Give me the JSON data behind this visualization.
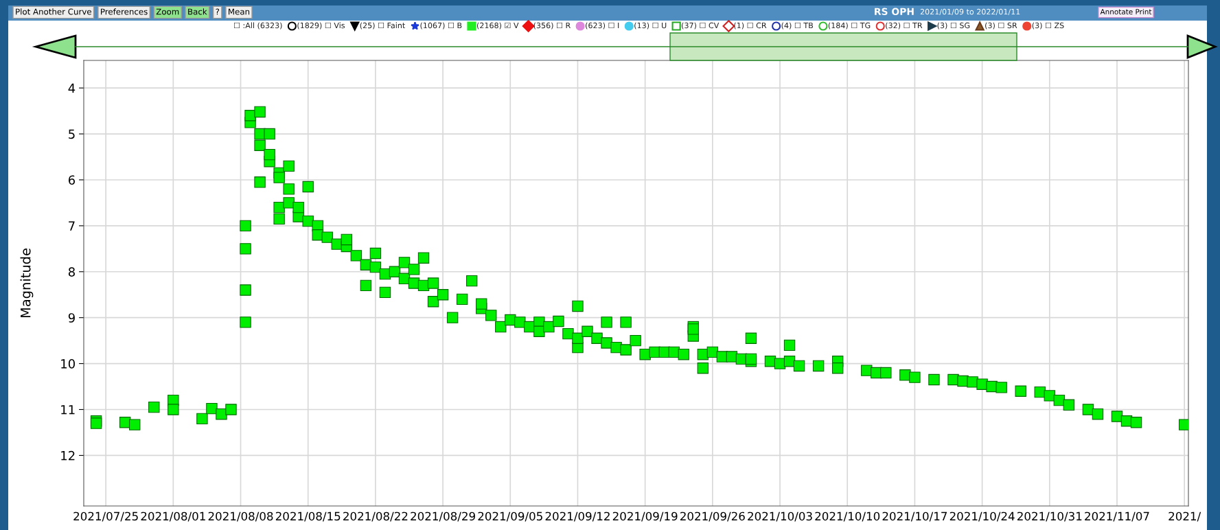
{
  "chart_data": {
    "type": "scatter",
    "title": "RS OPH",
    "subtitle": "2021/01/09 to 2022/01/11",
    "ylabel": "Magnitude",
    "annotations": [
      "Plot Another Curve",
      "Preferences",
      "Zoom",
      "Back",
      "?",
      "Mean",
      "Annotate Print",
      "☐ :All (6323)",
      "(1829) ☐ Vis",
      "(25) ☐ Faint",
      "(1067) ☐ B",
      "(2168) ☑ V",
      "(356) ☐ R",
      "(623) ☐ I",
      "(13) ☐ U",
      "(37) ☐ CV",
      "(1) ☐ CR",
      "(4) ☐ TB",
      "(184) ☐ TG",
      "(32) ☐ TR",
      "(3) ☐ SG",
      "(3) ☐ SR",
      "(3) ☐ ZS"
    ],
    "x": [
      "2021-07-24",
      "2021-07-24",
      "2021-07-27",
      "2021-07-28",
      "2021-07-30",
      "2021-08-01",
      "2021-08-01",
      "2021-08-04",
      "2021-08-05",
      "2021-08-06",
      "2021-08-07",
      "2021-08-08T12:00",
      "2021-08-08T12:00",
      "2021-08-08T12:00",
      "2021-08-08T12:00",
      "2021-08-09",
      "2021-08-09",
      "2021-08-10",
      "2021-08-10",
      "2021-08-10",
      "2021-08-11",
      "2021-08-11",
      "2021-08-11",
      "2021-08-10",
      "2021-08-12",
      "2021-08-12",
      "2021-08-13",
      "2021-08-12",
      "2021-08-12",
      "2021-08-13",
      "2021-08-13",
      "2021-08-14",
      "2021-08-14",
      "2021-08-15",
      "2021-08-15",
      "2021-08-16",
      "2021-08-16",
      "2021-08-17",
      "2021-08-18",
      "2021-08-19",
      "2021-08-19",
      "2021-08-20",
      "2021-08-21",
      "2021-08-21",
      "2021-08-22",
      "2021-08-22",
      "2021-08-23",
      "2021-08-23",
      "2021-08-24",
      "2021-08-25",
      "2021-08-25",
      "2021-08-26",
      "2021-08-26",
      "2021-08-27",
      "2021-08-27",
      "2021-08-28",
      "2021-08-28",
      "2021-08-29",
      "2021-08-30",
      "2021-08-31",
      "2021-09-01",
      "2021-09-02",
      "2021-09-02",
      "2021-09-03",
      "2021-09-04",
      "2021-09-05",
      "2021-09-06",
      "2021-09-07",
      "2021-09-08",
      "2021-09-08",
      "2021-09-09",
      "2021-09-10",
      "2021-09-11",
      "2021-09-12",
      "2021-09-12",
      "2021-09-12",
      "2021-09-13",
      "2021-09-14",
      "2021-09-15",
      "2021-09-15",
      "2021-09-16",
      "2021-09-17",
      "2021-09-17",
      "2021-09-18",
      "2021-09-19",
      "2021-09-20",
      "2021-09-21",
      "2021-09-22",
      "2021-09-23",
      "2021-09-24",
      "2021-09-24",
      "2021-09-24",
      "2021-09-25",
      "2021-09-25",
      "2021-09-26",
      "2021-09-27",
      "2021-09-28",
      "2021-09-29",
      "2021-09-30",
      "2021-09-30",
      "2021-09-30",
      "2021-10-02",
      "2021-10-03",
      "2021-10-04",
      "2021-10-04",
      "2021-10-05",
      "2021-10-07",
      "2021-10-09",
      "2021-10-09",
      "2021-10-12",
      "2021-10-13",
      "2021-10-14",
      "2021-10-16",
      "2021-10-17",
      "2021-10-19",
      "2021-10-21",
      "2021-10-22",
      "2021-10-23",
      "2021-10-24",
      "2021-10-25",
      "2021-10-26",
      "2021-10-28",
      "2021-10-30",
      "2021-10-31",
      "2021-11-01",
      "2021-11-02",
      "2021-11-04",
      "2021-11-05",
      "2021-11-07",
      "2021-11-08",
      "2021-11-09",
      "2021-11-14"
    ],
    "values": [
      11.25,
      11.3,
      11.28,
      11.33,
      10.95,
      10.8,
      11.0,
      11.2,
      10.98,
      11.1,
      11.0,
      9.1,
      8.4,
      7.5,
      7.0,
      4.75,
      4.6,
      4.52,
      5.0,
      5.25,
      5.0,
      5.6,
      5.45,
      6.05,
      5.85,
      5.95,
      5.7,
      6.6,
      6.85,
      6.5,
      6.2,
      6.8,
      6.6,
      6.15,
      6.9,
      7.0,
      7.2,
      7.25,
      7.4,
      7.45,
      7.3,
      7.65,
      7.85,
      8.3,
      7.6,
      7.9,
      8.05,
      8.45,
      8.0,
      8.15,
      7.8,
      7.95,
      8.25,
      7.7,
      8.3,
      8.25,
      8.65,
      8.5,
      9.0,
      8.6,
      8.2,
      8.8,
      8.7,
      8.95,
      9.2,
      9.05,
      9.1,
      9.2,
      9.1,
      9.3,
      9.2,
      9.08,
      9.35,
      8.75,
      9.65,
      9.45,
      9.3,
      9.45,
      9.55,
      9.1,
      9.65,
      9.7,
      9.1,
      9.5,
      9.8,
      9.75,
      9.75,
      9.75,
      9.8,
      9.2,
      9.4,
      9.25,
      9.8,
      10.1,
      9.75,
      9.85,
      9.85,
      9.9,
      9.95,
      9.45,
      9.9,
      9.95,
      10.0,
      9.95,
      9.6,
      10.05,
      10.05,
      9.95,
      10.1,
      10.15,
      10.2,
      10.2,
      10.25,
      10.3,
      10.35,
      10.35,
      10.38,
      10.4,
      10.45,
      10.5,
      10.52,
      10.6,
      10.62,
      10.7,
      10.8,
      10.9,
      11.0,
      11.1,
      11.15,
      11.25,
      11.28,
      11.33
    ],
    "color": "#00ee00",
    "marker": "square",
    "grid": true,
    "xlim": [
      "2021-07-22T17:00",
      "2021-11-14T10:00"
    ],
    "ylim": [
      13.1,
      3.4
    ],
    "xticks": [
      {
        "value": "2021-07-25",
        "label": "2021/07/25"
      },
      {
        "value": "2021-08-01",
        "label": "2021/08/01"
      },
      {
        "value": "2021-08-08",
        "label": "2021/08/08"
      },
      {
        "value": "2021-08-15",
        "label": "2021/08/15"
      },
      {
        "value": "2021-08-22",
        "label": "2021/08/22"
      },
      {
        "value": "2021-08-29",
        "label": "2021/08/29"
      },
      {
        "value": "2021-09-05",
        "label": "2021/09/05"
      },
      {
        "value": "2021-09-12",
        "label": "2021/09/12"
      },
      {
        "value": "2021-09-19",
        "label": "2021/09/19"
      },
      {
        "value": "2021-09-26",
        "label": "2021/09/26"
      },
      {
        "value": "2021-10-03",
        "label": "2021/10/03"
      },
      {
        "value": "2021-10-10",
        "label": "2021/10/10"
      },
      {
        "value": "2021-10-17",
        "label": "2021/10/17"
      },
      {
        "value": "2021-10-24",
        "label": "2021/10/24"
      },
      {
        "value": "2021-10-31",
        "label": "2021/10/31"
      },
      {
        "value": "2021-11-07",
        "label": "2021/11/07"
      },
      {
        "value": "2021-11-14",
        "label": "2021/"
      }
    ],
    "yticks": [
      4,
      5,
      6,
      7,
      8,
      9,
      10,
      11,
      12
    ]
  }
}
